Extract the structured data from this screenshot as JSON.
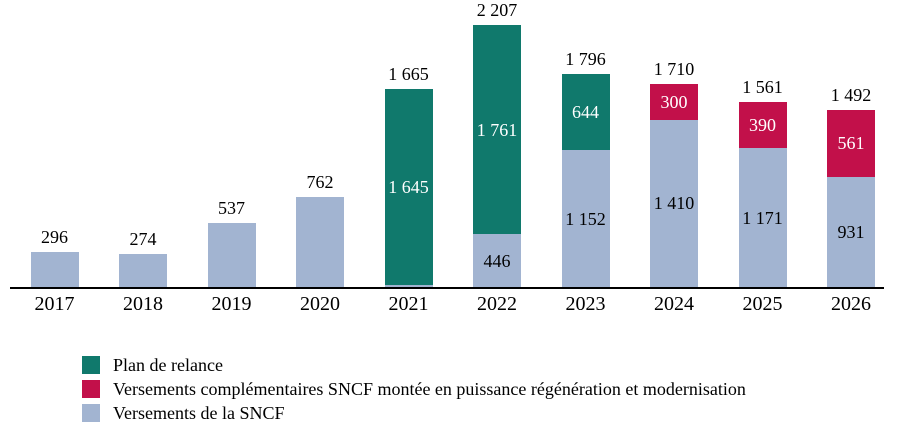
{
  "chart_data": {
    "type": "bar",
    "stacked": true,
    "categories": [
      "2017",
      "2018",
      "2019",
      "2020",
      "2021",
      "2022",
      "2023",
      "2024",
      "2025",
      "2026"
    ],
    "series": [
      {
        "name": "Versements de la SNCF",
        "color": "#a2b4d1",
        "label_color": "#000000",
        "values": [
          296,
          274,
          537,
          762,
          20,
          446,
          1152,
          1410,
          1171,
          931
        ],
        "labels": [
          "",
          "",
          "",
          "",
          "",
          "446",
          "1 152",
          "1 410",
          "1 171",
          "931"
        ]
      },
      {
        "name": "Plan de relance",
        "color": "#10796c",
        "label_color": "#ffffff",
        "values": [
          0,
          0,
          0,
          0,
          1645,
          1761,
          644,
          0,
          0,
          0
        ],
        "labels": [
          "",
          "",
          "",
          "",
          "1 645",
          "1 761",
          "644",
          "",
          "",
          ""
        ]
      },
      {
        "name": "Versements complémentaires SNCF montée en puissance régénération et modernisation",
        "color": "#c2104a",
        "label_color": "#ffffff",
        "values": [
          0,
          0,
          0,
          0,
          0,
          0,
          0,
          300,
          390,
          561
        ],
        "labels": [
          "",
          "",
          "",
          "",
          "",
          "",
          "",
          "300",
          "390",
          "561"
        ]
      }
    ],
    "totals": [
      "296",
      "274",
      "537",
      "762",
      "1 665",
      "2 207",
      "1 796",
      "1 710",
      "1 561",
      "1 492"
    ],
    "total_values": [
      296,
      274,
      537,
      762,
      1665,
      2207,
      1796,
      1710,
      1561,
      1492
    ],
    "ylim": [
      0,
      2300
    ],
    "grid": false,
    "axis_color": "#000000",
    "legend_position": "bottom-left",
    "legend": [
      {
        "label": "Plan de relance",
        "color": "#10796c"
      },
      {
        "label": "Versements complémentaires SNCF montée en puissance régénération et modernisation",
        "color": "#c2104a"
      },
      {
        "label": "Versements de la SNCF",
        "color": "#a2b4d1"
      }
    ]
  }
}
